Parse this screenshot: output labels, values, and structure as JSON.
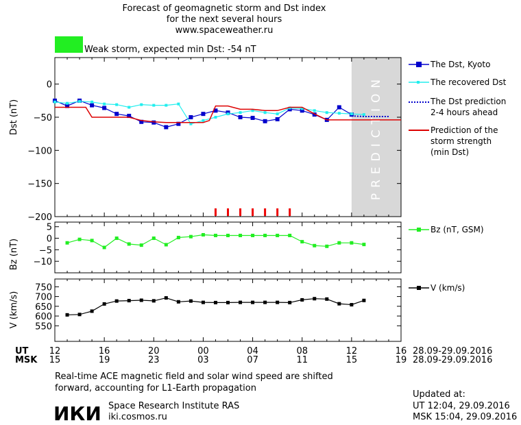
{
  "header": {
    "title_line1": "Forecast of geomagnetic storm and Dst index",
    "title_line2": "for the next several hours",
    "title_line3": "www.spaceweather.ru",
    "storm_label": "Weak storm, expected min Dst: -54 nT"
  },
  "colors": {
    "storm_box": "#22ee22",
    "dst_kyoto": "#0000cc",
    "dst_recovered": "#22eeee",
    "dst_prediction": "#0000cc",
    "storm_strength": "#dd0000",
    "bz": "#22ee22",
    "v": "#000000",
    "prediction_band": "#d8d8d8",
    "storm_markers": "#ee0000"
  },
  "prediction_label": "PREDICTION",
  "legend": {
    "dst_kyoto": "The Dst, Kyoto",
    "dst_recovered": "The recovered Dst",
    "dst_prediction_1": "The Dst prediction",
    "dst_prediction_2": "2-4 hours ahead",
    "strength_1": "Prediction of the",
    "strength_2": "storm strength",
    "strength_3": "(min Dst)",
    "bz": "Bz (nT, GSM)",
    "v": "V (km/s)"
  },
  "time_axis": {
    "ut_label": "UT",
    "msk_label": "MSK",
    "ut_ticks": [
      "12",
      "16",
      "20",
      "00",
      "04",
      "08",
      "12",
      "16"
    ],
    "msk_ticks": [
      "15",
      "19",
      "23",
      "03",
      "07",
      "11",
      "15",
      "19"
    ],
    "date_range_ut": "28.09-29.09.2016",
    "date_range_msk": "28.09-29.09.2016"
  },
  "footer": {
    "note_line1": "Real-time ACE magnetic field and solar wind speed are shifted",
    "note_line2": "forward, accounting for L1-Earth propagation",
    "logo_text": "ИКИ",
    "institute": "Space Research Institute RAS",
    "site": "iki.cosmos.ru",
    "updated_label": "Updated at:",
    "updated_ut": "UT   12:04, 29.09.2016",
    "updated_msk": "MSK 15:04, 29.09.2016"
  },
  "chart_data": [
    {
      "type": "line",
      "panel": "dst",
      "ylabel": "Dst (nT)",
      "xlim": [
        0,
        28
      ],
      "ylim": [
        -200,
        40
      ],
      "yticks": [
        0,
        -50,
        -100,
        -150,
        -200
      ],
      "prediction_start": 24,
      "series": [
        {
          "name": "The Dst, Kyoto",
          "x": [
            0,
            1,
            2,
            3,
            4,
            5,
            6,
            7,
            8,
            9,
            10,
            11,
            12,
            13,
            14,
            15,
            16,
            17,
            18,
            19,
            20,
            21,
            22,
            23,
            24
          ],
          "y": [
            -25,
            -33,
            -25,
            -32,
            -36,
            -45,
            -48,
            -57,
            -58,
            -65,
            -60,
            -50,
            -45,
            -40,
            -43,
            -50,
            -51,
            -56,
            -53,
            -38,
            -40,
            -46,
            -54,
            -35,
            -46
          ]
        },
        {
          "name": "The recovered Dst",
          "x": [
            0,
            1,
            2,
            3,
            4,
            5,
            6,
            7,
            8,
            9,
            10,
            11,
            12,
            13,
            14,
            15,
            16,
            17,
            18,
            19,
            20,
            21,
            22,
            23,
            24,
            25
          ],
          "y": [
            -27,
            -29,
            -26,
            -27,
            -30,
            -31,
            -35,
            -31,
            -32,
            -32,
            -30,
            -60,
            -55,
            -50,
            -45,
            -43,
            -40,
            -43,
            -45,
            -36,
            -37,
            -40,
            -43,
            -44,
            -45,
            -46
          ]
        },
        {
          "name": "The Dst prediction 2-4 hours ahead",
          "x": [
            24,
            25,
            26,
            27
          ],
          "y": [
            -48,
            -49,
            -49,
            -49
          ]
        },
        {
          "name": "Prediction of the storm strength (min Dst)",
          "x": [
            0,
            2.5,
            3,
            6,
            7,
            8,
            9,
            12,
            12.5,
            13,
            14,
            15,
            16,
            17,
            18,
            19,
            20,
            21,
            22,
            28
          ],
          "y": [
            -35,
            -35,
            -50,
            -50,
            -55,
            -57,
            -58,
            -58,
            -55,
            -33,
            -33,
            -38,
            -38,
            -40,
            -40,
            -35,
            -35,
            -45,
            -54,
            -54
          ]
        }
      ],
      "storm_marker_x": [
        13,
        14,
        15,
        16,
        17,
        18,
        19
      ]
    },
    {
      "type": "line",
      "panel": "bz",
      "ylabel": "Bz (nT)",
      "ylim": [
        -15,
        7
      ],
      "yticks": [
        5,
        0,
        -5,
        -10
      ],
      "series": [
        {
          "name": "Bz (nT, GSM)",
          "x": [
            1,
            2,
            3,
            4,
            5,
            6,
            7,
            8,
            9,
            10,
            11,
            12,
            13,
            14,
            15,
            16,
            17,
            18,
            19,
            20,
            21,
            22,
            23,
            24,
            25
          ],
          "y": [
            -2,
            -0.5,
            -1,
            -4,
            0,
            -2.5,
            -3,
            0,
            -2.8,
            0.3,
            0.7,
            1.5,
            1.2,
            1.2,
            1.2,
            1.2,
            1.2,
            1.2,
            1.2,
            -1.5,
            -3.2,
            -3.5,
            -2,
            -2,
            -2.7
          ]
        }
      ]
    },
    {
      "type": "line",
      "panel": "v",
      "ylabel": "V (km/s)",
      "ylim": [
        470,
        790
      ],
      "yticks": [
        750,
        700,
        650,
        600,
        550
      ],
      "series": [
        {
          "name": "V (km/s)",
          "x": [
            1,
            2,
            3,
            4,
            5,
            6,
            7,
            8,
            9,
            10,
            11,
            12,
            13,
            14,
            15,
            16,
            17,
            18,
            19,
            20,
            21,
            22,
            23,
            24,
            25
          ],
          "y": [
            606,
            608,
            625,
            662,
            677,
            679,
            681,
            678,
            693,
            673,
            677,
            670,
            669,
            669,
            670,
            670,
            670,
            670,
            669,
            683,
            689,
            687,
            663,
            658,
            680
          ]
        }
      ]
    }
  ]
}
